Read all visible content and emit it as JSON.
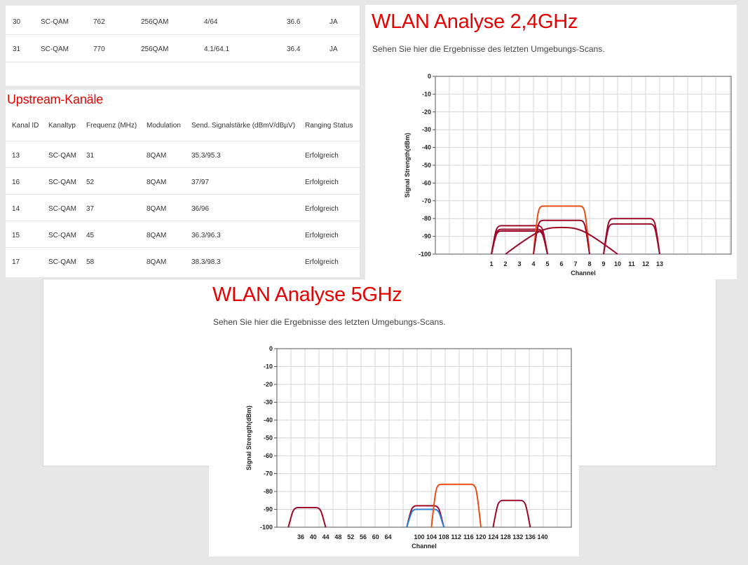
{
  "downstream": {
    "rows": [
      {
        "id": "30",
        "type": "SC-QAM",
        "freq": "762",
        "mod": "256QAM",
        "power": "4/64",
        "mer": "36.6",
        "lock": "JA"
      },
      {
        "id": "31",
        "type": "SC-QAM",
        "freq": "770",
        "mod": "256QAM",
        "power": "4.1/64.1",
        "mer": "36.4",
        "lock": "JA"
      }
    ]
  },
  "upstream": {
    "title": "Upstream-Kanäle",
    "headers": [
      "Kanal ID",
      "Kanaltyp",
      "Frequenz (MHz)",
      "Modulation",
      "Send. Signalstärke (dBmV/dBµV)",
      "Ranging Status"
    ],
    "rows": [
      {
        "id": "13",
        "type": "SC-QAM",
        "freq": "31",
        "mod": "8QAM",
        "power": "35.3/95.3",
        "status": "Erfolgreich"
      },
      {
        "id": "16",
        "type": "SC-QAM",
        "freq": "52",
        "mod": "8QAM",
        "power": "37/97",
        "status": "Erfolgreich"
      },
      {
        "id": "14",
        "type": "SC-QAM",
        "freq": "37",
        "mod": "8QAM",
        "power": "36/96",
        "status": "Erfolgreich"
      },
      {
        "id": "15",
        "type": "SC-QAM",
        "freq": "45",
        "mod": "8QAM",
        "power": "36.3/96.3",
        "status": "Erfolgreich"
      },
      {
        "id": "17",
        "type": "SC-QAM",
        "freq": "58",
        "mod": "8QAM",
        "power": "38.3/98.3",
        "status": "Erfolgreich"
      }
    ]
  },
  "wlan24": {
    "title": "WLAN Analyse 2,4GHz",
    "subtitle": "Sehen Sie hier die Ergebnisse des letzten Umgebungs-Scans."
  },
  "wlan5": {
    "title": "WLAN Analyse 5GHz",
    "subtitle": "Sehen Sie hier die Ergebnisse des letzten Umgebungs-Scans."
  },
  "colors": {
    "brand_red": "#e60000",
    "series_darkred": "#9b0a2a",
    "series_orange": "#ee4c16",
    "series_blue": "#2f7fd6"
  },
  "chart_data": [
    {
      "type": "area",
      "ylabel": "Signal Strength(dBm)",
      "xlabel": "Channel",
      "ylim": [
        -100,
        0
      ],
      "yticks": [
        "0",
        "-10",
        "-20",
        "-30",
        "-40",
        "-50",
        "-60",
        "-70",
        "-80",
        "-90",
        "-100"
      ],
      "xticks": [
        "1",
        "2",
        "3",
        "4",
        "5",
        "6",
        "7",
        "8",
        "9",
        "10",
        "11",
        "12",
        "13"
      ],
      "grid": true,
      "series": [
        {
          "channel": 3,
          "width": 4,
          "signal": -84,
          "color": "series_darkred"
        },
        {
          "channel": 3,
          "width": 4,
          "signal": -86,
          "color": "series_darkred"
        },
        {
          "channel": 3,
          "width": 4,
          "signal": -87,
          "color": "series_darkred"
        },
        {
          "channel": 6,
          "width": 4,
          "signal": -73,
          "color": "series_orange"
        },
        {
          "channel": 6,
          "width": 4,
          "signal": -81,
          "color": "series_darkred"
        },
        {
          "channel": 6,
          "width": 8,
          "signal": -85,
          "color": "series_darkred"
        },
        {
          "channel": 11,
          "width": 4,
          "signal": -80,
          "color": "series_darkred"
        },
        {
          "channel": 11,
          "width": 4,
          "signal": -83,
          "color": "series_darkred"
        }
      ]
    },
    {
      "type": "area",
      "ylabel": "Signal Strength(dBm)",
      "xlabel": "Channel",
      "ylim": [
        -100,
        0
      ],
      "yticks": [
        "0",
        "-10",
        "-20",
        "-30",
        "-40",
        "-50",
        "-60",
        "-70",
        "-80",
        "-90",
        "-100"
      ],
      "xticks": [
        "36",
        "40",
        "44",
        "48",
        "52",
        "56",
        "60",
        "64",
        "100",
        "104",
        "108",
        "112",
        "116",
        "120",
        "124",
        "128",
        "132",
        "136",
        "140"
      ],
      "grid": true,
      "series": [
        {
          "from": "36",
          "to": "44",
          "signal": -89,
          "color": "series_darkred"
        },
        {
          "from": "100",
          "to": "108",
          "signal": -88,
          "color": "series_darkred"
        },
        {
          "from": "100",
          "to": "108",
          "signal": -90,
          "color": "series_blue"
        },
        {
          "from": "108",
          "to": "120",
          "signal": -76,
          "color": "series_orange"
        },
        {
          "from": "128",
          "to": "136",
          "signal": -85,
          "color": "series_darkred"
        }
      ]
    }
  ]
}
